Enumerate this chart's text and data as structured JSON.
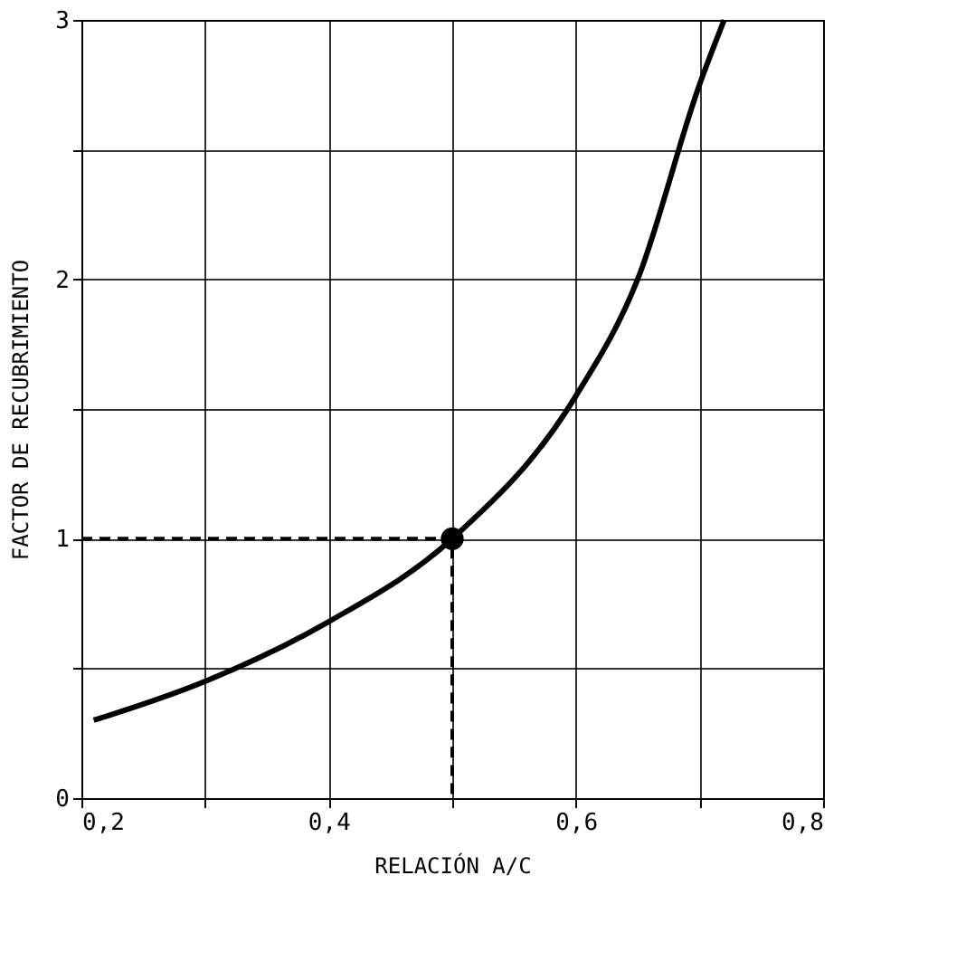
{
  "chart_data": {
    "type": "line",
    "xlabel": "RELACIÓN A/C",
    "ylabel": "FACTOR DE RECUBRIMIENTO",
    "xlim": [
      0.2,
      0.8
    ],
    "ylim": [
      0,
      3
    ],
    "xticks": [
      {
        "value": 0.2,
        "label": "0,2"
      },
      {
        "value": 0.3,
        "label": null
      },
      {
        "value": 0.4,
        "label": "0,4"
      },
      {
        "value": 0.5,
        "label": null
      },
      {
        "value": 0.6,
        "label": "0,6"
      },
      {
        "value": 0.7,
        "label": null
      },
      {
        "value": 0.8,
        "label": "0,8"
      }
    ],
    "yticks": [
      0,
      {
        "value": 0.5,
        "label": null
      },
      1,
      {
        "value": 1.5,
        "label": null
      },
      2,
      {
        "value": 2.5,
        "label": null
      },
      3
    ],
    "grid": true,
    "series": [
      {
        "color": "#000000",
        "type": "line",
        "line_style": "solid",
        "marker": "none",
        "x": [
          0.21,
          0.3,
          0.4,
          0.5,
          0.6,
          0.65,
          0.7,
          0.72
        ],
        "values": [
          0.3,
          0.45,
          0.68,
          1.0,
          1.55,
          2.0,
          2.75,
          3.0
        ]
      },
      {
        "color": "#000000",
        "type": "line",
        "line_style": "dashed",
        "marker": "none",
        "x": [
          0.2,
          0.5,
          0.5
        ],
        "values": [
          1,
          1,
          0
        ]
      },
      {
        "color": "#000000",
        "type": "scatter",
        "marker": "circle",
        "x": [
          0.5
        ],
        "values": [
          1
        ]
      }
    ]
  }
}
